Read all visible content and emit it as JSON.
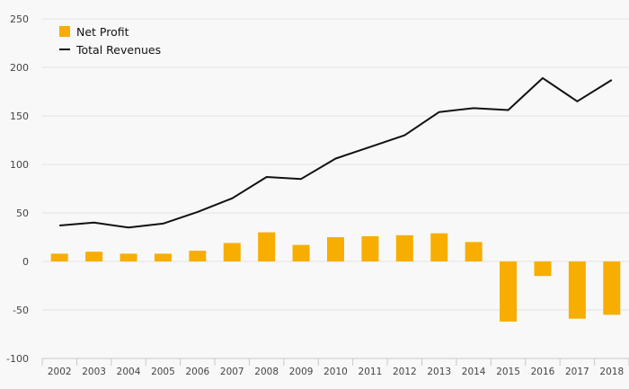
{
  "chart_data": {
    "type": "bar",
    "categories": [
      "2002",
      "2003",
      "2004",
      "2005",
      "2006",
      "2007",
      "2008",
      "2009",
      "2010",
      "2011",
      "2012",
      "2013",
      "2014",
      "2015",
      "2016",
      "2017",
      "2018"
    ],
    "series": [
      {
        "name": "Net Profit",
        "type": "bar",
        "color": "#f7ae00",
        "values": [
          8,
          10,
          8,
          8,
          11,
          19,
          30,
          17,
          25,
          26,
          27,
          29,
          20,
          -62,
          -15,
          -59,
          -55
        ]
      },
      {
        "name": "Total Revenues",
        "type": "line",
        "color": "#111111",
        "values": [
          37,
          40,
          35,
          39,
          51,
          65,
          87,
          85,
          106,
          118,
          130,
          154,
          158,
          156,
          189,
          165,
          187
        ]
      }
    ],
    "title": "",
    "xlabel": "",
    "ylabel": "",
    "ylim": [
      -100,
      250
    ],
    "yticks": [
      -100,
      -50,
      0,
      50,
      100,
      150,
      200,
      250
    ],
    "grid": true,
    "legend_position": "top-left"
  }
}
